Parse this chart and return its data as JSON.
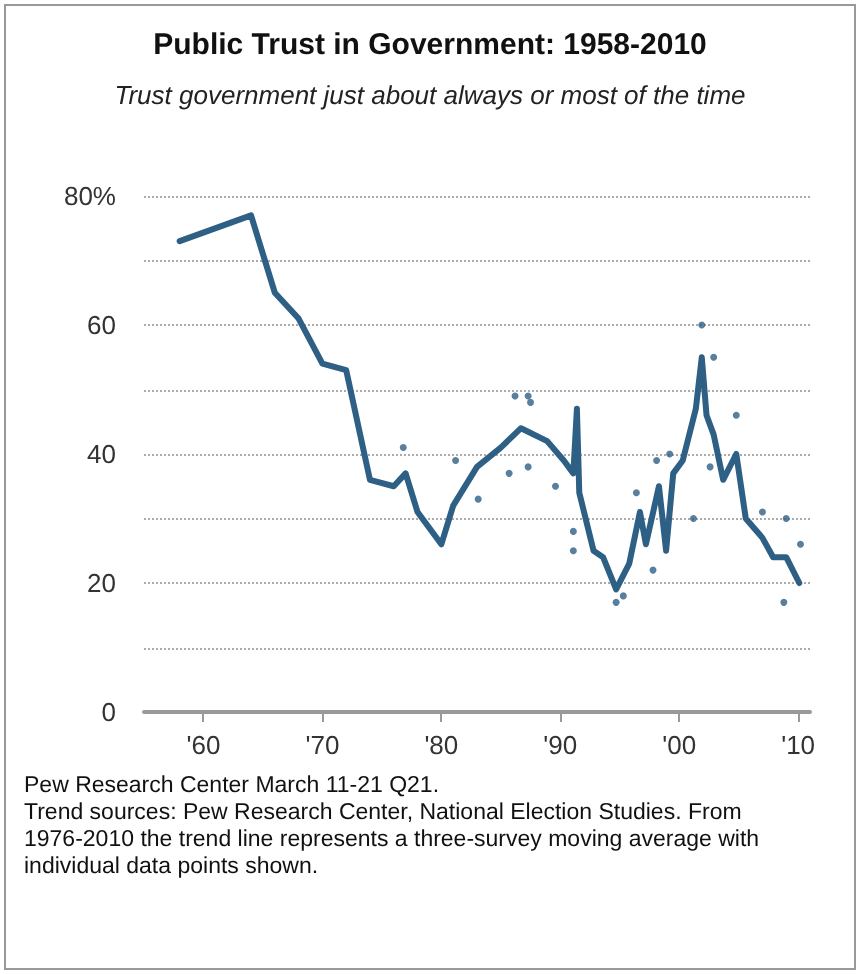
{
  "chart_data": {
    "type": "line",
    "title": "Public Trust in Government: 1958-2010",
    "subtitle": "Trust government just about always or most of the time",
    "xlim": [
      1955,
      2011
    ],
    "xticks": [
      {
        "value": 1960,
        "label": "'60"
      },
      {
        "value": 1970,
        "label": "'70"
      },
      {
        "value": 1980,
        "label": "'80"
      },
      {
        "value": 1990,
        "label": "'90"
      },
      {
        "value": 2000,
        "label": "'00"
      },
      {
        "value": 2010,
        "label": "'10"
      }
    ],
    "ylim": [
      0,
      80
    ],
    "yticks": [
      0,
      {
        "value": 10,
        "label": null
      },
      20,
      {
        "value": 30,
        "label": null
      },
      40,
      {
        "value": 50,
        "label": null
      },
      60,
      {
        "value": 70,
        "label": null
      },
      {
        "value": 80,
        "label": "80%"
      }
    ],
    "grid": "y",
    "line_style": "solid",
    "series": [
      {
        "color": "#2e5f84",
        "marker": "none",
        "x": [
          1958,
          1964,
          1966,
          1968,
          1970,
          1972,
          1974,
          1976,
          1977,
          1978,
          1980,
          1981,
          1983,
          1985,
          1986.7,
          1988.9,
          1990.3,
          1991.1,
          1991.4,
          1991.6,
          1992.8,
          1993.6,
          1994.7,
          1995.8,
          1996.7,
          1997.2,
          1998.3,
          1998.9,
          1999.5,
          2000.3,
          2001.4,
          2001.9,
          2002.3,
          2002.9,
          2003.7,
          2004.8,
          2005.6,
          2007,
          2007.9,
          2009,
          2010.1
        ],
        "values": [
          73,
          77,
          65,
          61,
          54,
          53,
          36,
          35,
          37,
          31,
          26,
          32,
          38,
          41,
          44,
          42,
          39,
          37,
          47,
          34,
          25,
          24,
          19,
          23,
          31,
          26,
          35,
          25,
          37,
          39,
          47,
          55,
          46,
          43,
          36,
          40,
          30,
          27,
          24,
          24,
          20
        ]
      },
      {
        "type": "scatter",
        "color": "#2e5f84",
        "marker": "circle",
        "x": [
          1976.8,
          1986.2,
          1987.3,
          1987.5,
          1983.1,
          1981.2,
          1991.1,
          1991.1,
          1989.6,
          1994.7,
          1995.3,
          1997.8,
          1996.4,
          1998.1,
          1999.2,
          2001.2,
          2001.9,
          2002.9,
          2004.8,
          2002.6,
          2007,
          2009,
          2008.8,
          2010.2,
          1985.7,
          1987.3
        ],
        "values": [
          41,
          49,
          49,
          48,
          33,
          39,
          25,
          28,
          35,
          17,
          18,
          22,
          34,
          39,
          40,
          30,
          60,
          55,
          46,
          38,
          31,
          30,
          17,
          26,
          37,
          38
        ]
      }
    ],
    "annotations": [
      "Pew Research Center March 11-21 Q21.",
      "Trend sources: Pew Research Center, National Election Studies. From 1976-2010 the trend line represents a three-survey moving average with individual data points shown."
    ]
  }
}
